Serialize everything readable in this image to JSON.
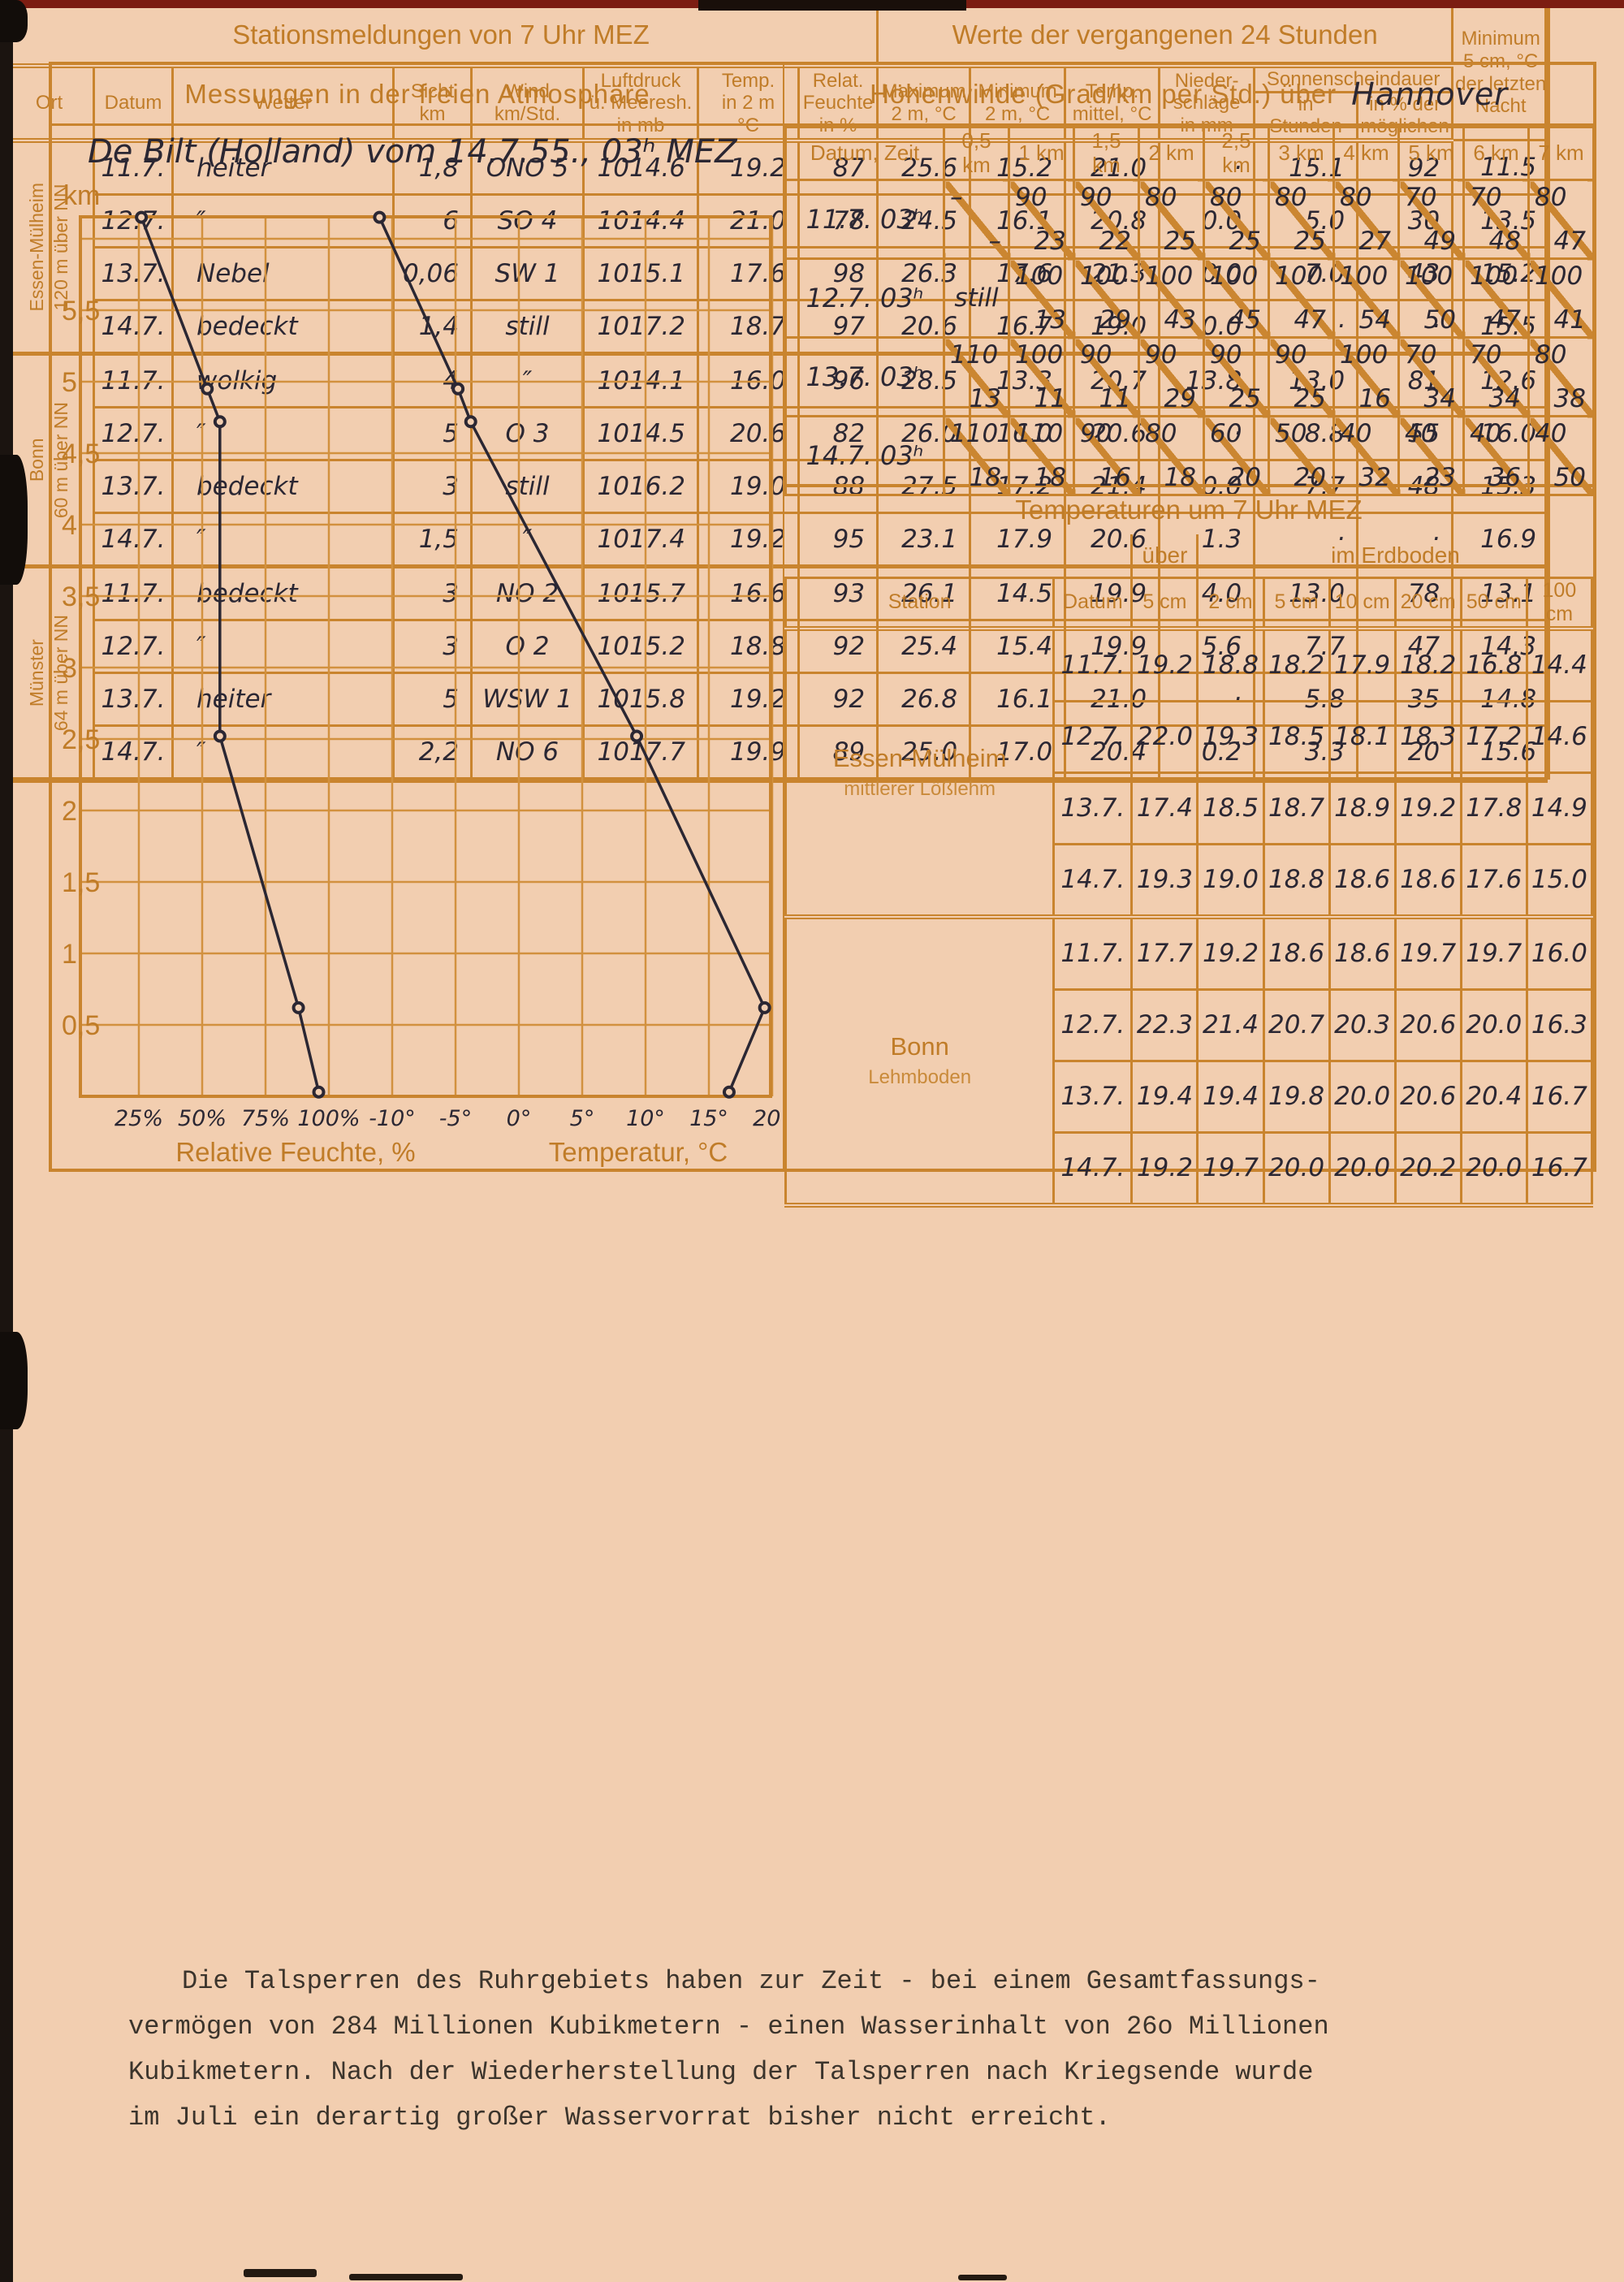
{
  "colors": {
    "paper": "#f2ceb0",
    "line": "#c9842e",
    "printed": "#c07c28",
    "ink": "#2b2733",
    "typed": "#3b342c",
    "edge_red": "#7c1d12"
  },
  "chart": {
    "title": "Messungen in der freien Atmosphäre",
    "annotation": "De Bilt (Holland) vom 14.7.55., 03ʰ MEZ"
  },
  "chart_data": {
    "type": "line",
    "title": "Messungen in der freien Atmosphäre — De Bilt (Holland) vom 14.7.55., 03h MEZ",
    "ylabel": "km",
    "ylim": [
      0,
      6.2
    ],
    "grid": true,
    "y_ticks": [
      {
        "v": 5.5,
        "label": "5,5"
      },
      {
        "v": 5,
        "label": "5"
      },
      {
        "v": 4.5,
        "label": "4,5"
      },
      {
        "v": 4,
        "label": "4"
      },
      {
        "v": 3.5,
        "label": "3,5"
      },
      {
        "v": 3,
        "label": "3"
      },
      {
        "v": 2.5,
        "label": "2,5"
      },
      {
        "v": 2,
        "label": "2"
      },
      {
        "v": 1.5,
        "label": "1,5"
      },
      {
        "v": 1,
        "label": "1"
      },
      {
        "v": 0.5,
        "label": "0,5"
      }
    ],
    "humidity_axis": {
      "label": "Relative Feuchte, %",
      "ticks": [
        "25%",
        "50%",
        "75%",
        "100%"
      ],
      "tick_values": [
        25,
        50,
        75,
        100
      ]
    },
    "temperature_axis": {
      "label": "Temperatur, °C",
      "ticks": [
        "-10°",
        "-5°",
        "0°",
        "5°",
        "10°",
        "15°",
        "20°"
      ],
      "tick_values": [
        -10,
        -5,
        0,
        5,
        10,
        15,
        20
      ]
    },
    "series": [
      {
        "name": "Relative Feuchte",
        "x_axis": "humidity",
        "points": [
          [
            6.15,
            26
          ],
          [
            4.95,
            52
          ],
          [
            4.72,
            57
          ],
          [
            2.52,
            57
          ],
          [
            0.62,
            88
          ],
          [
            0.03,
            96
          ]
        ]
      },
      {
        "name": "Temperatur",
        "x_axis": "temperature",
        "points": [
          [
            6.15,
            -11
          ],
          [
            4.95,
            -4.8
          ],
          [
            4.72,
            -3.8
          ],
          [
            2.52,
            9.3
          ],
          [
            0.62,
            19.4
          ],
          [
            0.03,
            16.6
          ]
        ]
      }
    ]
  },
  "hoehenwinde": {
    "title": "Höhenwinde (Grad/km per Std.) über",
    "title_hw": "Hannover",
    "col_headers": [
      "Datum, Zeit",
      "0,5 km",
      "1 km",
      "1,5 km",
      "2 km",
      "2,5 km",
      "3 km",
      "4 km",
      "5 km",
      "6 km",
      "7 km"
    ],
    "rows": [
      {
        "label": "11.7. 03ʰ",
        "cells": [
          [
            "–",
            "–"
          ],
          [
            "90",
            "23"
          ],
          [
            "90",
            "22"
          ],
          [
            "80",
            "25"
          ],
          [
            "80",
            "25"
          ],
          [
            "80",
            "25"
          ],
          [
            "80",
            "27"
          ],
          [
            "70",
            "49"
          ],
          [
            "70",
            "48"
          ],
          [
            "80",
            "47"
          ]
        ]
      },
      {
        "label": "12.7. 03ʰ",
        "cells": [
          [
            "still",
            ""
          ],
          [
            "100",
            "13"
          ],
          [
            "100",
            "29"
          ],
          [
            "100",
            "43"
          ],
          [
            "100",
            "45"
          ],
          [
            "100",
            "47"
          ],
          [
            "100",
            "54"
          ],
          [
            "100",
            "50"
          ],
          [
            "100",
            "47"
          ],
          [
            "100",
            "41"
          ]
        ]
      },
      {
        "label": "13.7. 03ʰ",
        "cells": [
          [
            "110",
            "13"
          ],
          [
            "100",
            "11"
          ],
          [
            "90",
            "11"
          ],
          [
            "90",
            "29"
          ],
          [
            "90",
            "25"
          ],
          [
            "90",
            "25"
          ],
          [
            "100",
            "16"
          ],
          [
            "70",
            "34"
          ],
          [
            "70",
            "34"
          ],
          [
            "80",
            "38"
          ]
        ]
      },
      {
        "label": "14.7. 03ʰ",
        "cells": [
          [
            "110",
            "18"
          ],
          [
            "110",
            "18"
          ],
          [
            "90",
            "16"
          ],
          [
            "80",
            "18"
          ],
          [
            "60",
            "20"
          ],
          [
            "50",
            "20"
          ],
          [
            "40",
            "32"
          ],
          [
            "40",
            "23"
          ],
          [
            "40",
            "36"
          ],
          [
            "40",
            "50"
          ]
        ]
      }
    ]
  },
  "temperaturen": {
    "title": "Temperaturen um 7 Uhr MEZ",
    "group_header_ueber": "über",
    "group_header_erdboden": "im Erdboden",
    "col_headers": [
      "Station",
      "Datum",
      "5 cm",
      "2 cm",
      "5 cm",
      "10 cm",
      "20 cm",
      "50 cm",
      "100 cm"
    ],
    "stations": [
      {
        "name": "Essen-Mülheim",
        "soil": "mittlerer Lößlehm",
        "rows": [
          [
            "11.7.",
            "19.2",
            "18.8",
            "18.2",
            "17.9",
            "18.2",
            "16.8",
            "14.4"
          ],
          [
            "12.7.",
            "22.0",
            "19.3",
            "18.5",
            "18.1",
            "18.3",
            "17.2",
            "14.6"
          ],
          [
            "13.7.",
            "17.4",
            "18.5",
            "18.7",
            "18.9",
            "19.2",
            "17.8",
            "14.9"
          ],
          [
            "14.7.",
            "19.3",
            "19.0",
            "18.8",
            "18.6",
            "18.6",
            "17.6",
            "15.0"
          ]
        ]
      },
      {
        "name": "Bonn",
        "soil": "Lehmboden",
        "rows": [
          [
            "11.7.",
            "17.7",
            "19.2",
            "18.6",
            "18.6",
            "19.7",
            "19.7",
            "16.0"
          ],
          [
            "12.7.",
            "22.3",
            "21.4",
            "20.7",
            "20.3",
            "20.6",
            "20.0",
            "16.3"
          ],
          [
            "13.7.",
            "19.4",
            "19.4",
            "19.8",
            "20.0",
            "20.6",
            "20.4",
            "16.7"
          ],
          [
            "14.7.",
            "19.2",
            "19.7",
            "20.0",
            "20.0",
            "20.2",
            "20.0",
            "16.7"
          ]
        ]
      }
    ]
  },
  "stationsmeldungen": {
    "title_left": "Stationsmeldungen von 7 Uhr MEZ",
    "title_right": "Werte der vergangenen 24 Stunden",
    "col_headers_left": [
      "Ort",
      "Datum",
      "Wetter",
      "Sicht\nkm",
      "Wind\nkm/Std.",
      "Luftdruck\nü. Meeresh.\nin mb",
      "Temp.\nin 2 m\n°C",
      "Relat.\nFeuchte\nin %"
    ],
    "col_headers_right": [
      "Maximum\n2 m, °C",
      "Minimum\n2 m, °C",
      "Temp.\nmittel, °C",
      "Nieder-\nschläge\nin mm"
    ],
    "sonnenschein_header": "Sonnenscheindauer",
    "sonnenschein_sub": [
      "in\nStunden",
      "in % der\nmöglichen"
    ],
    "minimum_night_header": "Minimum\n5 cm, °C\nder letzten\nNacht",
    "stations": [
      {
        "name": "Essen-Mülheim\n120 m über NN",
        "rows": [
          {
            "datum": "11.7.",
            "wetter": "heiter",
            "sicht": "1,8",
            "wind": "ONO 5",
            "druck": "1014.6",
            "temp": "19.2",
            "feuchte": "87",
            "max": "25.6",
            "min": "15.2",
            "mittel": "21.0",
            "nieder": "·",
            "sonnen_h": "15.1",
            "sonnen_pct": "92",
            "min_nacht": "11.5"
          },
          {
            "datum": "12.7.",
            "wetter": "″",
            "sicht": "6",
            "wind": "SO 4",
            "druck": "1014.4",
            "temp": "21.0",
            "feuchte": "78",
            "max": "24.5",
            "min": "16.1",
            "mittel": "20.8",
            "nieder": "0.0",
            "sonnen_h": "5.0",
            "sonnen_pct": "30",
            "min_nacht": "13.5"
          },
          {
            "datum": "13.7.",
            "wetter": "Nebel",
            "sicht": "0,06",
            "wind": "SW 1",
            "druck": "1015.1",
            "temp": "17.6",
            "feuchte": "98",
            "max": "26.3",
            "min": "17.6",
            "mittel": "21.3",
            "nieder": "0.0",
            "sonnen_h": "7.0",
            "sonnen_pct": "43",
            "min_nacht": "15.2"
          },
          {
            "datum": "14.7.",
            "wetter": "bedeckt",
            "sicht": "1,4",
            "wind": "still",
            "druck": "1017.2",
            "temp": "18.7",
            "feuchte": "97",
            "max": "20.6",
            "min": "16.7",
            "mittel": "19.0",
            "nieder": "0.0",
            "sonnen_h": "·",
            "sonnen_pct": "·",
            "min_nacht": "15.5"
          }
        ]
      },
      {
        "name": "Bonn\n60 m über NN",
        "rows": [
          {
            "datum": "11.7.",
            "wetter": "wolkig",
            "sicht": "4",
            "wind": "″",
            "druck": "1014.1",
            "temp": "16.0",
            "feuchte": "96",
            "max": "28.5",
            "min": "13.3",
            "mittel": "20.7",
            "nieder": "13.8",
            "sonnen_h": "13.0",
            "sonnen_pct": "81",
            "min_nacht": "12.6"
          },
          {
            "datum": "12.7.",
            "wetter": "″",
            "sicht": "5",
            "wind": "O 3",
            "druck": "1014.5",
            "temp": "20.6",
            "feuchte": "82",
            "max": "26.0",
            "min": "16.0",
            "mittel": "20.6",
            "nieder": "·",
            "sonnen_h": "8.8",
            "sonnen_pct": "55",
            "min_nacht": "16.0"
          },
          {
            "datum": "13.7.",
            "wetter": "bedeckt",
            "sicht": "3",
            "wind": "still",
            "druck": "1016.2",
            "temp": "19.0",
            "feuchte": "88",
            "max": "27.5",
            "min": "17.2",
            "mittel": "21.4",
            "nieder": "0.0",
            "sonnen_h": "7.7",
            "sonnen_pct": "48",
            "min_nacht": "15.3"
          },
          {
            "datum": "14.7.",
            "wetter": "″",
            "sicht": "1,5",
            "wind": "″",
            "druck": "1017.4",
            "temp": "19.2",
            "feuchte": "95",
            "max": "23.1",
            "min": "17.9",
            "mittel": "20.6",
            "nieder": "1.3",
            "sonnen_h": "·",
            "sonnen_pct": "·",
            "min_nacht": "16.9"
          }
        ]
      },
      {
        "name": "Münster\n64 m über NN",
        "rows": [
          {
            "datum": "11.7.",
            "wetter": "bedeckt",
            "sicht": "3",
            "wind": "NO 2",
            "druck": "1015.7",
            "temp": "16.6",
            "feuchte": "93",
            "max": "26.1",
            "min": "14.5",
            "mittel": "19.9",
            "nieder": "4.0",
            "sonnen_h": "13.0",
            "sonnen_pct": "78",
            "min_nacht": "13.1"
          },
          {
            "datum": "12.7.",
            "wetter": "″",
            "sicht": "3",
            "wind": "O 2",
            "druck": "1015.2",
            "temp": "18.8",
            "feuchte": "92",
            "max": "25.4",
            "min": "15.4",
            "mittel": "19.9",
            "nieder": "5.6",
            "sonnen_h": "7.7",
            "sonnen_pct": "47",
            "min_nacht": "14.3"
          },
          {
            "datum": "13.7.",
            "wetter": "heiter",
            "sicht": "5",
            "wind": "WSW 1",
            "druck": "1015.8",
            "temp": "19.2",
            "feuchte": "92",
            "max": "26.8",
            "min": "16.1",
            "mittel": "21.0",
            "nieder": "·",
            "sonnen_h": "5.8",
            "sonnen_pct": "35",
            "min_nacht": "14.8"
          },
          {
            "datum": "14.7.",
            "wetter": "″",
            "sicht": "2,2",
            "wind": "NO 6",
            "druck": "1017.7",
            "temp": "19.9",
            "feuchte": "89",
            "max": "25.0",
            "min": "17.0",
            "mittel": "20.4",
            "nieder": "0.2",
            "sonnen_h": "3.3",
            "sonnen_pct": "20",
            "min_nacht": "15.6"
          }
        ]
      }
    ]
  },
  "paragraph": {
    "text": "Die Talsperren des Ruhrgebiets haben zur Zeit - bei einem Gesamtfassungs-\nvermögen von 284 Millionen Kubikmetern - einen Wasserinhalt von 26o Millionen\nKubikmetern. Nach der Wiederherstellung der Talsperren nach Kriegsende wurde\nim Juli ein derartig großer Wasservorrat bisher nicht erreicht."
  }
}
